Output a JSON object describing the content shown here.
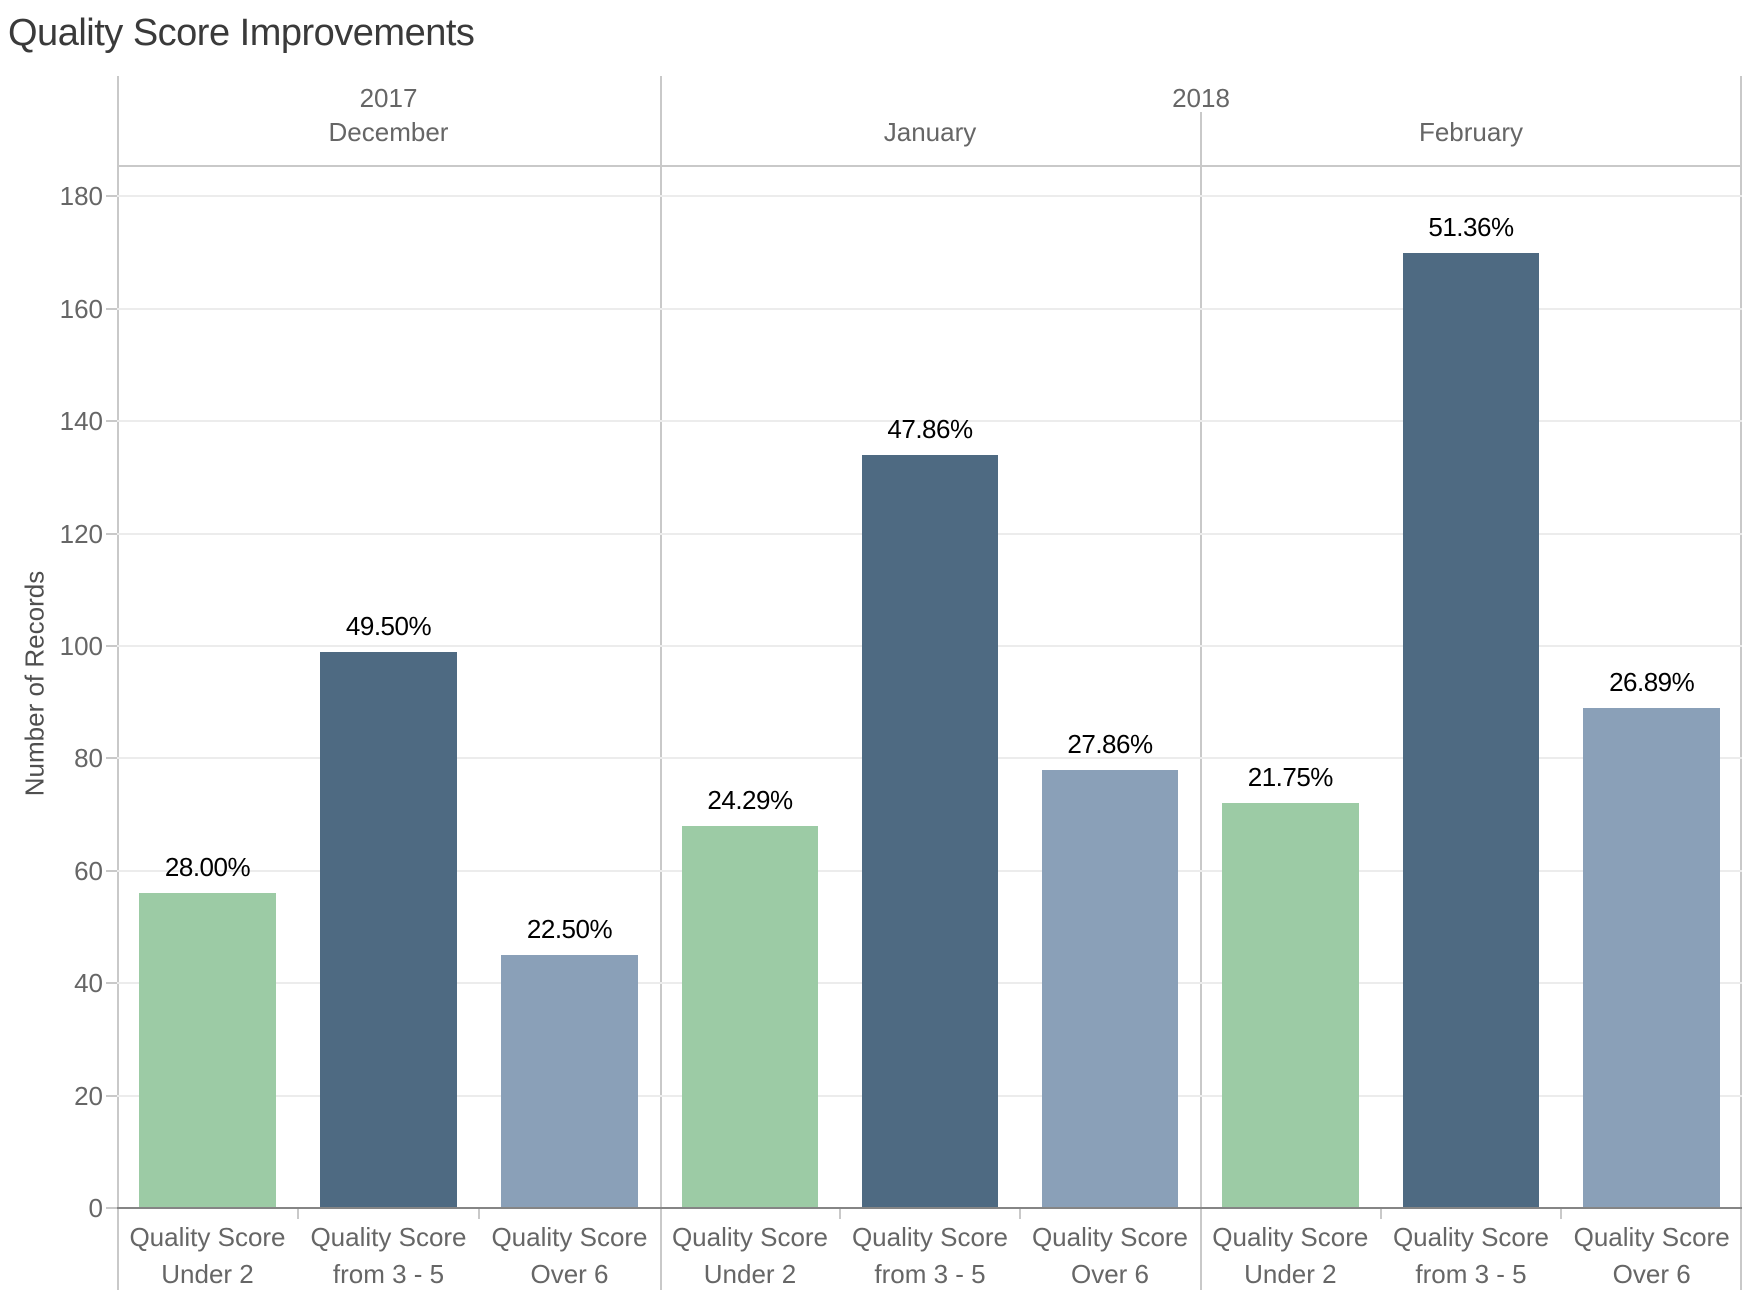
{
  "title": "Quality Score Improvements",
  "chart_data": {
    "type": "bar",
    "title": "Quality Score Improvements",
    "xlabel": "",
    "ylabel": "Number of Records",
    "ylim": [
      0,
      186
    ],
    "y_ticks": [
      0,
      20,
      40,
      60,
      80,
      100,
      120,
      140,
      160,
      180
    ],
    "grid": true,
    "legend": "none",
    "categories": [
      "Quality Score Under 2",
      "Quality Score from 3 - 5",
      "Quality Score Over 6"
    ],
    "category_lines": [
      [
        "Quality Score",
        "Under 2"
      ],
      [
        "Quality Score",
        "from 3 - 5"
      ],
      [
        "Quality Score",
        "Over 6"
      ]
    ],
    "color_keys": [
      "under_2",
      "from_3_5",
      "over_6"
    ],
    "colors": {
      "under_2": "#9CCBA5",
      "from_3_5": "#4E6A82",
      "over_6": "#8AA0B8"
    },
    "year_spans": [
      {
        "label": "2017",
        "panes": 1
      },
      {
        "label": "2018",
        "panes": 2
      }
    ],
    "groups": [
      {
        "year": "2017",
        "month": "December",
        "values": [
          56,
          99,
          45
        ],
        "labels": [
          "28.00%",
          "49.50%",
          "22.50%"
        ]
      },
      {
        "year": "2018",
        "month": "January",
        "values": [
          68,
          134,
          78
        ],
        "labels": [
          "24.29%",
          "47.86%",
          "27.86%"
        ]
      },
      {
        "year": "2018",
        "month": "February",
        "values": [
          72,
          170,
          89
        ],
        "labels": [
          "21.75%",
          "51.36%",
          "26.89%"
        ]
      }
    ],
    "text_colors": {
      "title": "#3A3A3A",
      "axis": "#666666",
      "axis_title": "#4F4F4F",
      "mark_label": "#000000"
    },
    "line_colors": {
      "grid": "#ECECEC",
      "border": "#C9C9C9",
      "axis_line": "#858585"
    }
  }
}
